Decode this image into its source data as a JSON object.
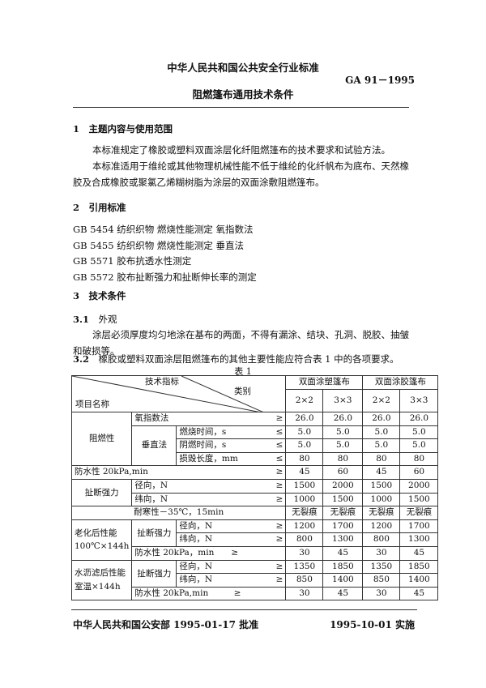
{
  "header": {
    "org_title": "中华人民共和国公共安全行业标准",
    "code": "GA 91－1995",
    "doc_title": "阻燃篷布通用技术条件"
  },
  "sec1": {
    "heading": "1　主题内容与使用范围",
    "para1": "本标准规定了橡胶或塑料双面涂层化纤阻燃篷布的技术要求和试验方法。",
    "para2": "本标准适用于维纶或其他物理机械性能不低于维纶的化纤帆布为底布、天然橡胶及合成橡胶或聚氯乙烯糊树脂为涂层的双面涂敷阻燃篷布。"
  },
  "sec2": {
    "heading": "2　引用标准",
    "refs": [
      "GB 5454  纺织织物  燃烧性能测定  氧指数法",
      "GB 5455  纺织织物  燃烧性能测定  垂直法",
      "GB 5571  胶布抗透水性测定",
      "GB 5572  胶布扯断强力和扯断伸长率的测定"
    ]
  },
  "sec3": {
    "heading": "3　技术条件",
    "s31_num": "3.1",
    "s31_title": "外观",
    "s31_text": "涂层必须厚度均匀地涂在基布的两面，不得有漏涂、结块、孔洞、脱胶、抽皱和破损等。",
    "s32_num": "3.2",
    "s32_text": "橡胶或塑料双面涂层阻燃篷布的其他主要性能应符合表 1 中的各项要求。"
  },
  "table": {
    "caption": "表 1",
    "hdr_tech": "技术指标",
    "hdr_cat": "类别",
    "hdr_item": "项目名称",
    "group_plastic": "双面涂塑篷布",
    "group_rubber": "双面涂胶篷布",
    "sizes": [
      "2×2",
      "3×3",
      "2×2",
      "3×3"
    ],
    "flame": "阻燃性",
    "oxygen": "氧指数法",
    "vertical": "垂直法",
    "burn": "燃烧时间，s",
    "smolder": "阴燃时间，s",
    "damage": "损毁长度，mm",
    "water": "防水性 20kPa,min",
    "tensile": "扯断强力",
    "warp": "径向，N",
    "weft": "纬向，N",
    "cold": "耐寒性－35℃，15min",
    "aging": "老化后性能 100℃×144h",
    "aging_water": "防水性 20kPa，min",
    "leach": "水沥滤后性能室温×144h",
    "leach_water": "防水性 20kPa,min",
    "ge": "≥",
    "le": "≤",
    "rows": {
      "oxygen": [
        "26.0",
        "26.0",
        "26.0",
        "26.0"
      ],
      "burn": [
        "5.0",
        "5.0",
        "5.0",
        "5.0"
      ],
      "smolder": [
        "5.0",
        "5.0",
        "5.0",
        "5.0"
      ],
      "damage": [
        "80",
        "80",
        "80",
        "80"
      ],
      "water": [
        "45",
        "60",
        "45",
        "60"
      ],
      "warp": [
        "1500",
        "2000",
        "1500",
        "2000"
      ],
      "weft": [
        "1000",
        "1500",
        "1000",
        "1500"
      ],
      "cold": [
        "无裂痕",
        "无裂痕",
        "无裂痕",
        "无裂痕"
      ],
      "aging_warp": [
        "1200",
        "1700",
        "1200",
        "1700"
      ],
      "aging_weft": [
        "800",
        "1300",
        "800",
        "1300"
      ],
      "aging_water": [
        "30",
        "45",
        "30",
        "45"
      ],
      "leach_warp": [
        "1350",
        "1850",
        "1350",
        "1850"
      ],
      "leach_weft": [
        "850",
        "1400",
        "850",
        "1400"
      ],
      "leach_water": [
        "30",
        "45",
        "30",
        "45"
      ]
    }
  },
  "footer": {
    "approve": "中华人民共和国公安部 1995-01-17 批准",
    "effective": "1995-10-01 实施"
  }
}
